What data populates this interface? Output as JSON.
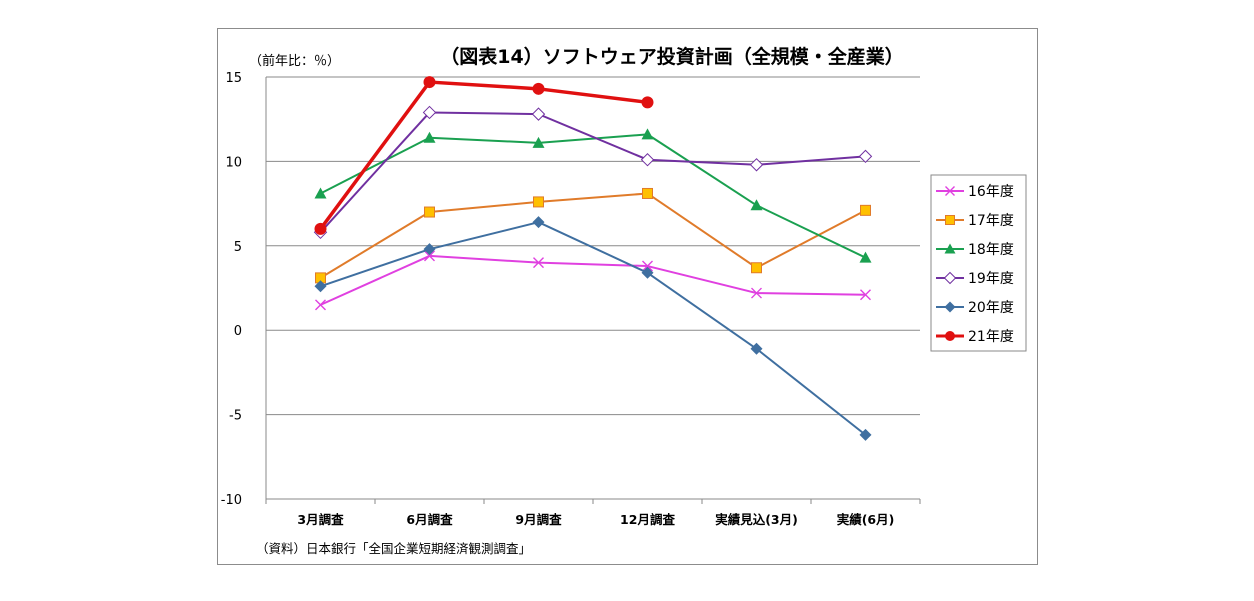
{
  "chart_data": {
    "type": "line",
    "title": "（図表14）ソフトウェア投資計画（全規模・全産業）",
    "unit_label": "（前年比：％）",
    "source": "（資料）日本銀行「全国企業短期経済観測調査」",
    "categories": [
      "3月調査",
      "6月調査",
      "9月調査",
      "12月調査",
      "実績見込(3月)",
      "実績(6月)"
    ],
    "ylim": [
      -10,
      15
    ],
    "yticks": [
      15,
      10,
      5,
      0,
      -5,
      -10
    ],
    "grid": true,
    "legend_position": "right",
    "series": [
      {
        "name": "16年度",
        "color": "#e040e0",
        "marker": "x",
        "values": [
          1.5,
          4.4,
          4.0,
          3.8,
          2.2,
          2.1
        ]
      },
      {
        "name": "17年度",
        "color": "#e07b2a",
        "marker": "square",
        "marker_fill": "#ffc000",
        "values": [
          3.1,
          7.0,
          7.6,
          8.1,
          3.7,
          7.1
        ]
      },
      {
        "name": "18年度",
        "color": "#1aa050",
        "marker": "triangle",
        "values": [
          8.1,
          11.4,
          11.1,
          11.6,
          7.4,
          4.3
        ]
      },
      {
        "name": "19年度",
        "color": "#7030a0",
        "marker": "diamond-open",
        "values": [
          5.8,
          12.9,
          12.8,
          10.1,
          9.8,
          10.3
        ]
      },
      {
        "name": "20年度",
        "color": "#3f6fa0",
        "marker": "diamond",
        "values": [
          2.6,
          4.8,
          6.4,
          3.4,
          -1.1,
          -6.2
        ]
      },
      {
        "name": "21年度",
        "color": "#e01010",
        "marker": "circle",
        "bold": true,
        "values": [
          6.0,
          14.7,
          14.3,
          13.5,
          null,
          null
        ]
      }
    ]
  }
}
